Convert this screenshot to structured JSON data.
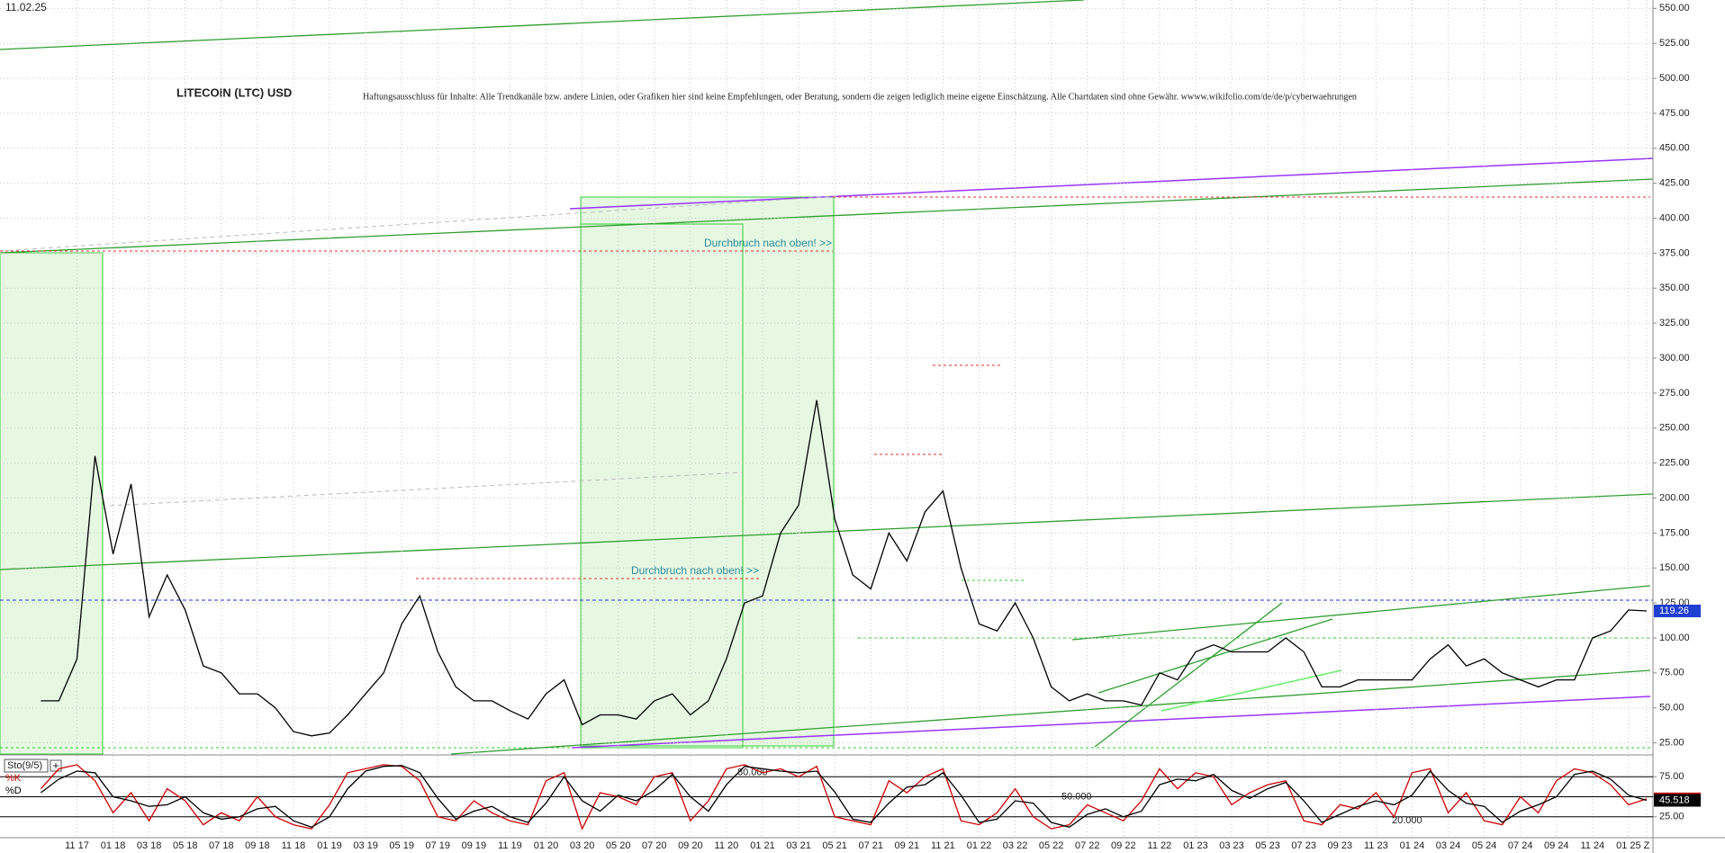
{
  "chart_data": [
    {
      "type": "line",
      "date": "11.02.25",
      "title": "LITECOIN (LTC) USD",
      "subtitle": "Haftungsausschluss für Inhalte: Alle Trendkanäle bzw. andere Linien, oder Grafiken hier sind keine Empfehlungen, oder Beratung, sondern die zeigen lediglich meine eigene Einschätzung. Alle Chartdaten sind ohne Gewähr. wwww.wikifolio.com/de/de/p/cyberwaehrungen",
      "annotations": [
        "Durchbruch nach oben! >>",
        "Durchbruch nach oben! >>"
      ],
      "categories": [
        null,
        null,
        "11 17",
        null,
        "01 18",
        null,
        "03 18",
        null,
        "05 18",
        null,
        "07 18",
        null,
        "09 18",
        null,
        "11 18",
        null,
        "01 19",
        null,
        "03 19",
        null,
        "05 19",
        null,
        "07 19",
        null,
        "09 19",
        null,
        "11 19",
        null,
        "01 20",
        null,
        "03 20",
        null,
        "05 20",
        null,
        "07 20",
        null,
        "09 20",
        null,
        "11 20",
        null,
        "01 21",
        null,
        "03 21",
        null,
        "05 21",
        null,
        "07 21",
        null,
        "09 21",
        null,
        "11 21",
        null,
        "01 22",
        null,
        "03 22",
        null,
        "05 22",
        null,
        "07 22",
        null,
        "09 22",
        null,
        "11 22",
        null,
        "01 23",
        null,
        "03 23",
        null,
        "05 23",
        null,
        "07 23",
        null,
        "09 23",
        null,
        "11 23",
        null,
        "01 24",
        null,
        "03 24",
        null,
        "05 24",
        null,
        "07 24",
        null,
        "09 24",
        null,
        "11 24",
        null,
        "01 25",
        "Z"
      ],
      "series": [
        {
          "color": "#000000",
          "values": [
            55,
            55,
            85,
            230,
            160,
            210,
            115,
            145,
            120,
            80,
            75,
            60,
            60,
            50,
            33,
            30,
            32,
            45,
            60,
            75,
            110,
            130,
            90,
            65,
            55,
            55,
            48,
            42,
            60,
            70,
            38,
            45,
            45,
            42,
            55,
            60,
            45,
            55,
            85,
            125,
            130,
            175,
            195,
            270,
            185,
            145,
            135,
            175,
            155,
            190,
            205,
            150,
            110,
            105,
            125,
            100,
            65,
            55,
            60,
            55,
            55,
            52,
            75,
            70,
            90,
            95,
            90,
            90,
            90,
            100,
            90,
            65,
            65,
            70,
            70,
            70,
            70,
            85,
            95,
            80,
            85,
            75,
            70,
            65,
            70,
            70,
            100,
            105,
            120,
            119.26
          ]
        }
      ],
      "ylim": [
        17,
        556
      ],
      "yticks": [
        {
          "value": 25,
          "label": "25.00"
        },
        {
          "value": 50,
          "label": "50.00"
        },
        {
          "value": 75,
          "label": "75.00"
        },
        {
          "value": 100,
          "label": "100.00"
        },
        {
          "value": 125,
          "label": "125.00"
        },
        {
          "value": 150,
          "label": "150.00"
        },
        {
          "value": 175,
          "label": "175.00"
        },
        {
          "value": 200,
          "label": "200.00"
        },
        {
          "value": 225,
          "label": "225.00"
        },
        {
          "value": 250,
          "label": "250.00"
        },
        {
          "value": 275,
          "label": "275.00"
        },
        {
          "value": 300,
          "label": "300.00"
        },
        {
          "value": 325,
          "label": "325.00"
        },
        {
          "value": 350,
          "label": "350.00"
        },
        {
          "value": 375,
          "label": "375.00"
        },
        {
          "value": 400,
          "label": "400.00"
        },
        {
          "value": 425,
          "label": "425.00"
        },
        {
          "value": 450,
          "label": "450.00"
        },
        {
          "value": 475,
          "label": "475.00"
        },
        {
          "value": 500,
          "label": "500.00"
        },
        {
          "value": 525,
          "label": "525.00"
        },
        {
          "value": 550,
          "label": "550.00"
        }
      ],
      "grid": true,
      "last_box_color": "#1f3fd0"
    },
    {
      "type": "line",
      "title": "Sto(9/5)",
      "series": [
        {
          "name": "%K",
          "color": "#cc0000",
          "values": [
            60,
            85,
            90,
            70,
            30,
            55,
            20,
            60,
            45,
            15,
            30,
            20,
            50,
            25,
            15,
            10,
            40,
            80,
            85,
            90,
            88,
            70,
            25,
            20,
            45,
            30,
            20,
            15,
            70,
            80,
            10,
            55,
            50,
            40,
            75,
            80,
            20,
            45,
            85,
            90,
            80,
            85,
            75,
            88,
            25,
            20,
            15,
            70,
            55,
            75,
            85,
            20,
            15,
            30,
            60,
            25,
            10,
            15,
            40,
            30,
            20,
            45,
            85,
            60,
            80,
            75,
            40,
            55,
            65,
            70,
            20,
            15,
            40,
            35,
            55,
            25,
            80,
            85,
            30,
            55,
            20,
            15,
            50,
            30,
            70,
            85,
            80,
            65,
            40,
            47.378
          ]
        },
        {
          "name": "%D",
          "color": "#000000",
          "values": [
            55,
            72,
            82,
            80,
            50,
            45,
            38,
            40,
            50,
            30,
            22,
            25,
            35,
            38,
            20,
            12,
            25,
            60,
            82,
            88,
            89,
            80,
            48,
            22,
            32,
            38,
            25,
            18,
            42,
            75,
            45,
            32,
            52,
            45,
            58,
            78,
            50,
            32,
            65,
            88,
            85,
            82,
            80,
            82,
            56,
            22,
            18,
            42,
            62,
            65,
            80,
            52,
            18,
            22,
            45,
            42,
            18,
            12,
            28,
            35,
            25,
            32,
            65,
            72,
            70,
            78,
            58,
            48,
            60,
            68,
            45,
            18,
            28,
            38,
            45,
            40,
            52,
            82,
            58,
            42,
            38,
            18,
            32,
            40,
            50,
            78,
            82,
            72,
            52,
            45.518
          ]
        }
      ],
      "levels": [
        {
          "value": 80,
          "label": "80.000"
        },
        {
          "value": 50,
          "label": "50.000"
        },
        {
          "value": 20,
          "label": "20.000"
        }
      ],
      "ylim": [
        0,
        100
      ],
      "yticks": [
        {
          "value": 25,
          "label": "25.00"
        },
        {
          "value": 50,
          "label": "50.00"
        },
        {
          "value": 75,
          "label": "75.00"
        }
      ],
      "grid": true
    }
  ]
}
